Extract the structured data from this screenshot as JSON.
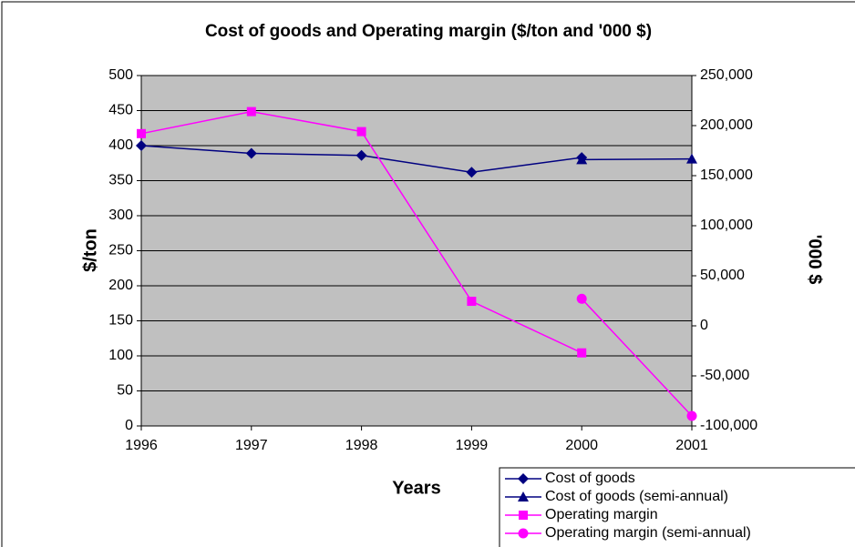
{
  "chart_data": {
    "type": "line",
    "title": "Cost of goods and Operating margin ($/ton and '000 $)",
    "xlabel": "Years",
    "ylabel": "$/ton",
    "y2label": "'000 $",
    "xlim": [
      1996,
      2001
    ],
    "xticks": [
      1996,
      1997,
      1998,
      1999,
      2000,
      2001
    ],
    "ylim": [
      0,
      500
    ],
    "yticks": [
      0,
      50,
      100,
      150,
      200,
      250,
      300,
      350,
      400,
      450,
      500
    ],
    "y2lim": [
      -100000,
      250000
    ],
    "y2ticks": [
      {
        "value": -100000,
        "label": "-100,000"
      },
      {
        "value": -50000,
        "label": "-50,000"
      },
      0,
      {
        "value": 50000,
        "label": "50,000"
      },
      {
        "value": 100000,
        "label": "100,000"
      },
      {
        "value": 150000,
        "label": "150,000"
      },
      {
        "value": 200000,
        "label": "200,000"
      },
      {
        "value": 250000,
        "label": "250,000"
      }
    ],
    "grid": true,
    "legend": "bottom-right",
    "series": [
      {
        "name": "Cost of goods",
        "color": "#000080",
        "marker": "diamond",
        "x": [
          1996,
          1997,
          1998,
          1999,
          2000
        ],
        "values": [
          400,
          389,
          386,
          362,
          383
        ]
      },
      {
        "name": "Cost of goods (semi-annual)",
        "color": "#000080",
        "marker": "triangle",
        "x": [
          2000,
          2001
        ],
        "values": [
          380,
          381
        ]
      },
      {
        "name": "Operating margin",
        "color": "#ff00ff",
        "marker": "square",
        "axis": "y2",
        "x": [
          1996,
          1997,
          1998,
          1999,
          2000
        ],
        "values": [
          192000,
          214000,
          194000,
          24500,
          -27000
        ]
      },
      {
        "name": "Operating margin (semi-annual)",
        "color": "#ff00ff",
        "marker": "circle",
        "axis": "y2",
        "x": [
          2000,
          2001
        ],
        "values": [
          27000,
          -90000
        ]
      }
    ]
  }
}
